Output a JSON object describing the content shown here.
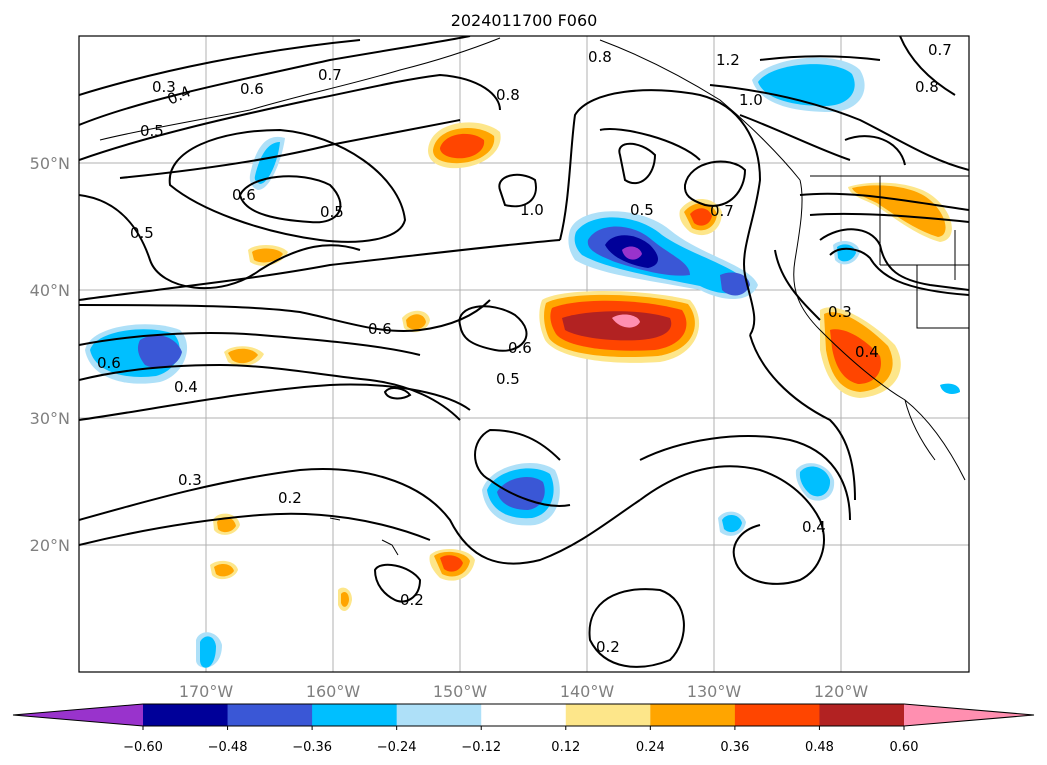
{
  "title": "2024011700 F060",
  "lat_ticks": [
    "50°N",
    "40°N",
    "30°N",
    "20°N"
  ],
  "lon_ticks": [
    "170°W",
    "160°W",
    "150°W",
    "140°W",
    "130°W",
    "120°W"
  ],
  "contour_labels": [
    "0.3",
    "0.4",
    "0.5",
    "0.6",
    "0.7",
    "0.8",
    "1.2",
    "1.0",
    "0.8",
    "0.7",
    "0.8",
    "0.5",
    "0.6",
    "0.5",
    "1.0",
    "0.5",
    "0.7",
    "0.6",
    "0.6",
    "0.6",
    "0.5",
    "0.4",
    "0.3",
    "0.4",
    "0.3",
    "0.2",
    "0.2",
    "0.2",
    "0.4"
  ],
  "colorbar": {
    "colors": [
      "#9933cc",
      "#000099",
      "#3a57d6",
      "#00bfff",
      "#aee0f8",
      "#ffffff",
      "#fde68a",
      "#ffa500",
      "#ff4500",
      "#b22222",
      "#ff8fb0"
    ],
    "labels": [
      "−0.60",
      "−0.48",
      "−0.36",
      "−0.24",
      "−0.12",
      "0.12",
      "0.24",
      "0.36",
      "0.48",
      "0.60"
    ]
  }
}
